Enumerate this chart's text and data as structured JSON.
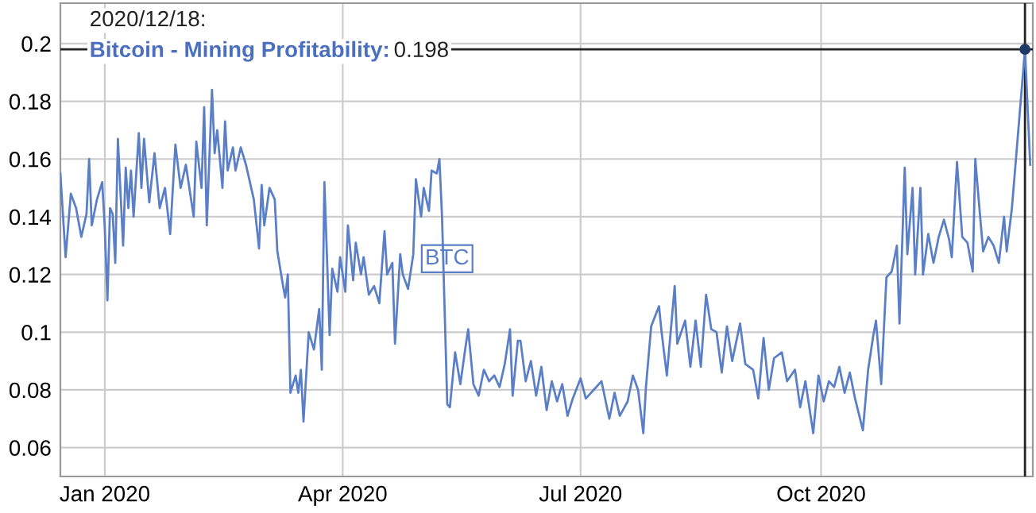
{
  "chart_data": {
    "type": "line",
    "x": [
      "2019-12-15",
      "2019-12-17",
      "2019-12-19",
      "2019-12-21",
      "2019-12-23",
      "2019-12-25",
      "2019-12-26",
      "2019-12-27",
      "2019-12-29",
      "2019-12-31",
      "2020-01-01",
      "2020-01-02",
      "2020-01-03",
      "2020-01-04",
      "2020-01-05",
      "2020-01-06",
      "2020-01-08",
      "2020-01-09",
      "2020-01-10",
      "2020-01-11",
      "2020-01-12",
      "2020-01-14",
      "2020-01-15",
      "2020-01-16",
      "2020-01-18",
      "2020-01-20",
      "2020-01-22",
      "2020-01-24",
      "2020-01-26",
      "2020-01-28",
      "2020-01-30",
      "2020-02-01",
      "2020-02-04",
      "2020-02-05",
      "2020-02-07",
      "2020-02-08",
      "2020-02-09",
      "2020-02-11",
      "2020-02-12",
      "2020-02-13",
      "2020-02-15",
      "2020-02-16",
      "2020-02-17",
      "2020-02-19",
      "2020-02-20",
      "2020-02-22",
      "2020-02-24",
      "2020-02-27",
      "2020-02-29",
      "2020-03-01",
      "2020-03-02",
      "2020-03-04",
      "2020-03-06",
      "2020-03-07",
      "2020-03-09",
      "2020-03-10",
      "2020-03-11",
      "2020-03-12",
      "2020-03-14",
      "2020-03-15",
      "2020-03-16",
      "2020-03-17",
      "2020-03-19",
      "2020-03-21",
      "2020-03-23",
      "2020-03-24",
      "2020-03-25",
      "2020-03-27",
      "2020-03-28",
      "2020-03-30",
      "2020-03-31",
      "2020-04-02",
      "2020-04-03",
      "2020-04-05",
      "2020-04-06",
      "2020-04-08",
      "2020-04-09",
      "2020-04-11",
      "2020-04-13",
      "2020-04-15",
      "2020-04-17",
      "2020-04-18",
      "2020-04-20",
      "2020-04-21",
      "2020-04-23",
      "2020-04-24",
      "2020-04-26",
      "2020-04-28",
      "2020-04-29",
      "2020-05-01",
      "2020-05-02",
      "2020-05-04",
      "2020-05-05",
      "2020-05-07",
      "2020-05-08",
      "2020-05-09",
      "2020-05-11",
      "2020-05-12",
      "2020-05-14",
      "2020-05-16",
      "2020-05-18",
      "2020-05-19",
      "2020-05-21",
      "2020-05-23",
      "2020-05-25",
      "2020-05-27",
      "2020-05-29",
      "2020-05-31",
      "2020-06-02",
      "2020-06-04",
      "2020-06-05",
      "2020-06-07",
      "2020-06-08",
      "2020-06-10",
      "2020-06-12",
      "2020-06-14",
      "2020-06-16",
      "2020-06-18",
      "2020-06-20",
      "2020-06-22",
      "2020-06-24",
      "2020-06-26",
      "2020-06-28",
      "2020-07-01",
      "2020-07-03",
      "2020-07-06",
      "2020-07-09",
      "2020-07-12",
      "2020-07-14",
      "2020-07-16",
      "2020-07-19",
      "2020-07-21",
      "2020-07-23",
      "2020-07-25",
      "2020-07-26",
      "2020-07-28",
      "2020-07-31",
      "2020-08-01",
      "2020-08-03",
      "2020-08-06",
      "2020-08-07",
      "2020-08-10",
      "2020-08-12",
      "2020-08-14",
      "2020-08-16",
      "2020-08-18",
      "2020-08-20",
      "2020-08-22",
      "2020-08-24",
      "2020-08-26",
      "2020-08-28",
      "2020-08-31",
      "2020-09-02",
      "2020-09-05",
      "2020-09-07",
      "2020-09-09",
      "2020-09-11",
      "2020-09-13",
      "2020-09-16",
      "2020-09-18",
      "2020-09-21",
      "2020-09-23",
      "2020-09-25",
      "2020-09-28",
      "2020-09-30",
      "2020-10-02",
      "2020-10-04",
      "2020-10-06",
      "2020-10-08",
      "2020-10-10",
      "2020-10-12",
      "2020-10-14",
      "2020-10-17",
      "2020-10-19",
      "2020-10-21",
      "2020-10-22",
      "2020-10-24",
      "2020-10-26",
      "2020-10-28",
      "2020-10-30",
      "2020-10-31",
      "2020-11-02",
      "2020-11-03",
      "2020-11-05",
      "2020-11-06",
      "2020-11-08",
      "2020-11-09",
      "2020-11-11",
      "2020-11-13",
      "2020-11-15",
      "2020-11-17",
      "2020-11-19",
      "2020-11-20",
      "2020-11-22",
      "2020-11-24",
      "2020-11-26",
      "2020-11-28",
      "2020-11-29",
      "2020-11-30",
      "2020-12-02",
      "2020-12-04",
      "2020-12-06",
      "2020-12-08",
      "2020-12-10",
      "2020-12-11",
      "2020-12-13",
      "2020-12-18",
      "2020-12-20"
    ],
    "series": [
      {
        "name": "BTC",
        "color": "#5b7fc7",
        "values": [
          0.155,
          0.126,
          0.148,
          0.143,
          0.133,
          0.141,
          0.16,
          0.137,
          0.146,
          0.152,
          0.136,
          0.111,
          0.143,
          0.141,
          0.124,
          0.167,
          0.13,
          0.157,
          0.143,
          0.156,
          0.14,
          0.169,
          0.15,
          0.167,
          0.145,
          0.162,
          0.143,
          0.15,
          0.134,
          0.165,
          0.15,
          0.158,
          0.14,
          0.166,
          0.15,
          0.178,
          0.137,
          0.184,
          0.162,
          0.17,
          0.15,
          0.173,
          0.156,
          0.164,
          0.156,
          0.164,
          0.158,
          0.146,
          0.129,
          0.151,
          0.137,
          0.15,
          0.146,
          0.128,
          0.117,
          0.112,
          0.12,
          0.079,
          0.085,
          0.079,
          0.087,
          0.069,
          0.1,
          0.094,
          0.108,
          0.087,
          0.152,
          0.099,
          0.122,
          0.114,
          0.126,
          0.114,
          0.137,
          0.118,
          0.131,
          0.12,
          0.126,
          0.113,
          0.116,
          0.11,
          0.135,
          0.12,
          0.124,
          0.096,
          0.127,
          0.12,
          0.115,
          0.127,
          0.153,
          0.14,
          0.15,
          0.142,
          0.156,
          0.155,
          0.16,
          0.14,
          0.075,
          0.074,
          0.093,
          0.082,
          0.095,
          0.101,
          0.082,
          0.078,
          0.087,
          0.083,
          0.085,
          0.081,
          0.089,
          0.101,
          0.078,
          0.097,
          0.097,
          0.083,
          0.09,
          0.078,
          0.088,
          0.073,
          0.083,
          0.076,
          0.082,
          0.071,
          0.077,
          0.084,
          0.077,
          0.08,
          0.083,
          0.07,
          0.079,
          0.071,
          0.076,
          0.085,
          0.08,
          0.065,
          0.081,
          0.102,
          0.109,
          0.1,
          0.085,
          0.116,
          0.096,
          0.104,
          0.088,
          0.104,
          0.088,
          0.113,
          0.101,
          0.1,
          0.086,
          0.102,
          0.09,
          0.103,
          0.089,
          0.087,
          0.077,
          0.098,
          0.08,
          0.091,
          0.093,
          0.083,
          0.087,
          0.074,
          0.083,
          0.065,
          0.085,
          0.076,
          0.083,
          0.081,
          0.088,
          0.079,
          0.086,
          0.077,
          0.066,
          0.087,
          0.099,
          0.104,
          0.082,
          0.119,
          0.121,
          0.13,
          0.103,
          0.157,
          0.127,
          0.15,
          0.12,
          0.15,
          0.12,
          0.134,
          0.124,
          0.133,
          0.139,
          0.132,
          0.126,
          0.159,
          0.133,
          0.131,
          0.121,
          0.16,
          0.149,
          0.128,
          0.133,
          0.13,
          0.124,
          0.14,
          0.128,
          0.143,
          0.198,
          0.158
        ]
      }
    ],
    "xlim": [
      "2019-12-15",
      "2020-12-21"
    ],
    "xticks": [
      {
        "value": "2020-01-01",
        "label": "Jan 2020"
      },
      {
        "value": "2020-04-01",
        "label": "Apr 2020"
      },
      {
        "value": "2020-07-01",
        "label": "Jul 2020"
      },
      {
        "value": "2020-10-01",
        "label": "Oct 2020"
      }
    ],
    "ylim": [
      0.05,
      0.214
    ],
    "yticks": [
      0.06,
      0.08,
      0.1,
      0.12,
      0.14,
      0.16,
      0.18,
      0.2
    ],
    "grid": true,
    "ref_lines": [
      {
        "axis": "x",
        "value": "2020-12-18",
        "color": "#222222"
      },
      {
        "axis": "y",
        "value": 0.198,
        "color": "#222222"
      }
    ],
    "annotations": [
      "2020/12/18:",
      "Bitcoin - Mining Profitability: 0.198"
    ]
  }
}
